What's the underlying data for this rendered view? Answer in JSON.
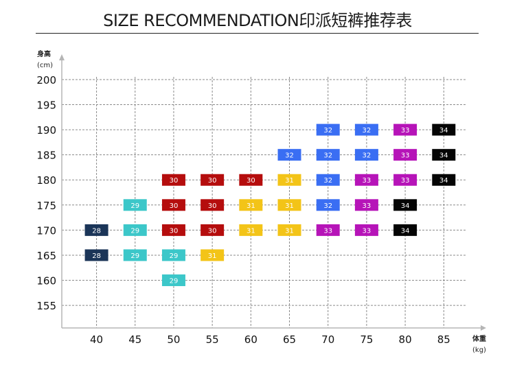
{
  "title": "SIZE RECOMMENDATION印派短裤推荐表",
  "chart_data": {
    "type": "table",
    "ylabel": "身高",
    "yunit": "(cm)",
    "xlabel": "体重",
    "xunit": "(kg)",
    "x_ticks": [
      40,
      45,
      50,
      55,
      60,
      65,
      70,
      75,
      80,
      85
    ],
    "y_ticks": [
      155,
      160,
      165,
      170,
      175,
      180,
      185,
      190,
      195,
      200
    ],
    "xlim": [
      35.5,
      88
    ],
    "ylim": [
      150.5,
      203
    ],
    "grid": true,
    "size_colors": {
      "28": "#1b3558",
      "29": "#3cc7c9",
      "30": "#b50d0d",
      "31": "#f3c418",
      "32": "#3a6ef3",
      "33": "#b614b8",
      "34": "#050505"
    },
    "points": [
      {
        "x": 40,
        "y": 170,
        "size": "28"
      },
      {
        "x": 40,
        "y": 165,
        "size": "28"
      },
      {
        "x": 45,
        "y": 175,
        "size": "29"
      },
      {
        "x": 45,
        "y": 170,
        "size": "29"
      },
      {
        "x": 45,
        "y": 165,
        "size": "29"
      },
      {
        "x": 50,
        "y": 180,
        "size": "30"
      },
      {
        "x": 50,
        "y": 175,
        "size": "30"
      },
      {
        "x": 50,
        "y": 170,
        "size": "30"
      },
      {
        "x": 50,
        "y": 165,
        "size": "29"
      },
      {
        "x": 50,
        "y": 160,
        "size": "29"
      },
      {
        "x": 55,
        "y": 180,
        "size": "30"
      },
      {
        "x": 55,
        "y": 175,
        "size": "30"
      },
      {
        "x": 55,
        "y": 170,
        "size": "30"
      },
      {
        "x": 55,
        "y": 165,
        "size": "31"
      },
      {
        "x": 60,
        "y": 180,
        "size": "30"
      },
      {
        "x": 60,
        "y": 175,
        "size": "31"
      },
      {
        "x": 60,
        "y": 170,
        "size": "31"
      },
      {
        "x": 65,
        "y": 185,
        "size": "32"
      },
      {
        "x": 65,
        "y": 180,
        "size": "31"
      },
      {
        "x": 65,
        "y": 175,
        "size": "31"
      },
      {
        "x": 65,
        "y": 170,
        "size": "31"
      },
      {
        "x": 70,
        "y": 190,
        "size": "32"
      },
      {
        "x": 70,
        "y": 185,
        "size": "32"
      },
      {
        "x": 70,
        "y": 180,
        "size": "32"
      },
      {
        "x": 70,
        "y": 175,
        "size": "32"
      },
      {
        "x": 70,
        "y": 170,
        "size": "33"
      },
      {
        "x": 75,
        "y": 190,
        "size": "32"
      },
      {
        "x": 75,
        "y": 185,
        "size": "32"
      },
      {
        "x": 75,
        "y": 180,
        "size": "33"
      },
      {
        "x": 75,
        "y": 175,
        "size": "33"
      },
      {
        "x": 75,
        "y": 170,
        "size": "33"
      },
      {
        "x": 80,
        "y": 190,
        "size": "33"
      },
      {
        "x": 80,
        "y": 185,
        "size": "33"
      },
      {
        "x": 80,
        "y": 180,
        "size": "33"
      },
      {
        "x": 80,
        "y": 175,
        "size": "34"
      },
      {
        "x": 80,
        "y": 170,
        "size": "34"
      },
      {
        "x": 85,
        "y": 190,
        "size": "34"
      },
      {
        "x": 85,
        "y": 185,
        "size": "34"
      },
      {
        "x": 85,
        "y": 180,
        "size": "34"
      }
    ]
  }
}
